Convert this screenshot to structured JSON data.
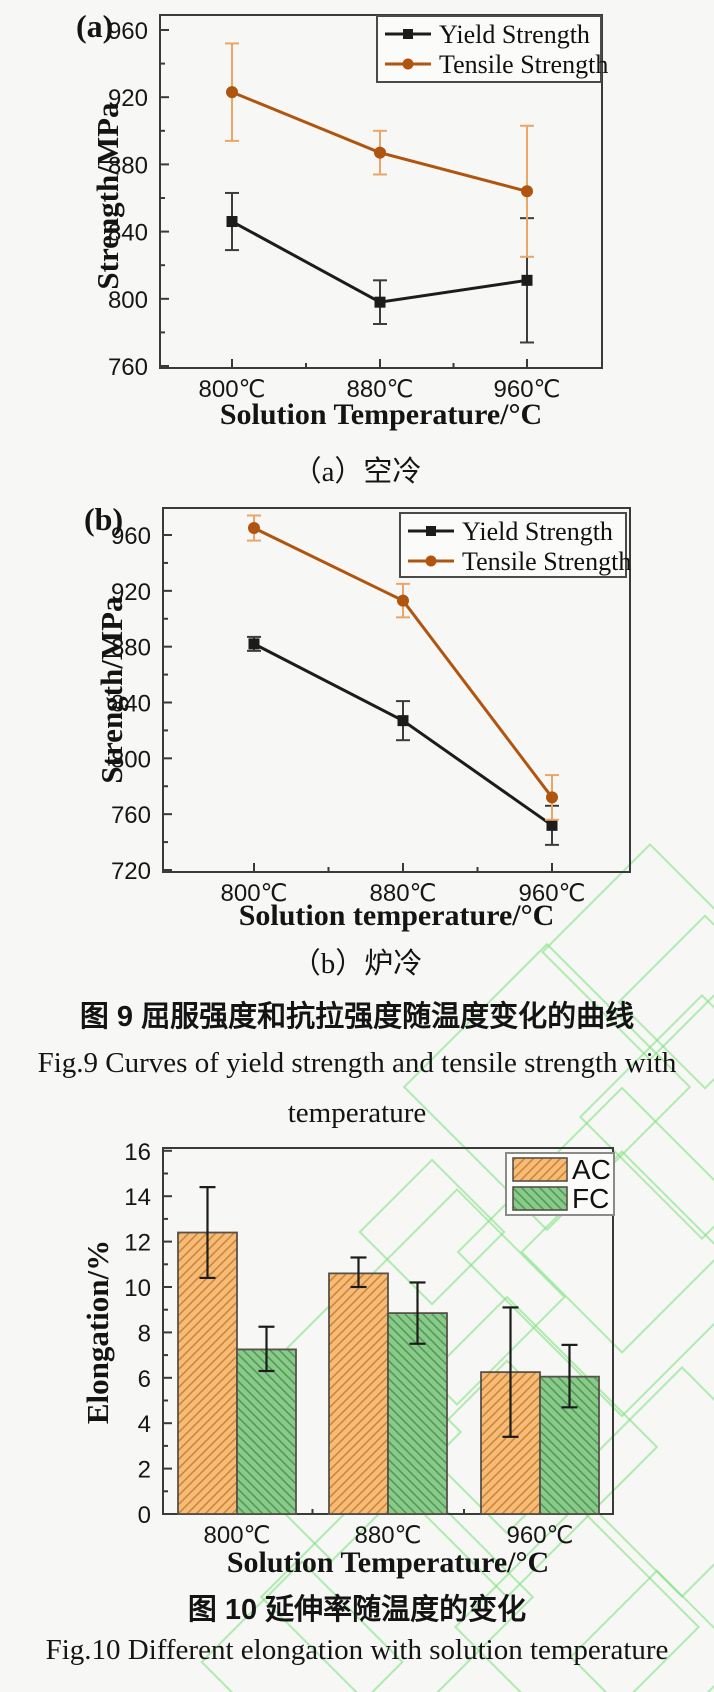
{
  "page": {
    "background": "#f7f7f5",
    "watermark_color": "#74e274"
  },
  "figure9": {
    "caption_zh": "图 9 屈服强度和抗拉强度随温度变化的曲线",
    "caption_en_line1": "Fig.9 Curves of yield strength and tensile strength with",
    "caption_en_line2": "temperature"
  },
  "figure10": {
    "caption_zh": "图 10 延伸率随温度的变化",
    "caption_en": "Fig.10 Different elongation with solution temperature"
  },
  "chart_data": [
    {
      "id": "fig9a",
      "type": "line",
      "panel_label": "(a)",
      "sub_caption": "（a）空冷",
      "xlabel": "Solution Temperature/°C",
      "ylabel": "Strength/MPa",
      "categories": [
        "800℃",
        "880℃",
        "960℃"
      ],
      "ylim": [
        760,
        969
      ],
      "yticks": [
        760,
        800,
        840,
        880,
        920,
        960
      ],
      "grid": false,
      "legend_position": "top-right",
      "series": [
        {
          "name": "Yield Strength",
          "marker": "square",
          "color": "#1c1c1c",
          "errbar_color": "#3c3c3c",
          "values": [
            846,
            798,
            811
          ],
          "err": [
            17,
            13,
            37
          ]
        },
        {
          "name": "Tensile Strength",
          "marker": "circle",
          "color": "#b05510",
          "errbar_color": "#e9a667",
          "values": [
            923,
            887,
            864
          ],
          "err": [
            29,
            13,
            39
          ]
        }
      ]
    },
    {
      "id": "fig9b",
      "type": "line",
      "panel_label": "(b)",
      "sub_caption": "（b）炉冷",
      "xlabel": "Solution temperature/°C",
      "ylabel": "Strength/MPa",
      "categories": [
        "800℃",
        "880℃",
        "960℃"
      ],
      "ylim": [
        720,
        979
      ],
      "yticks": [
        720,
        760,
        800,
        840,
        880,
        920,
        960
      ],
      "grid": false,
      "legend_position": "top-right",
      "series": [
        {
          "name": "Yield Strength",
          "marker": "square",
          "color": "#1c1c1c",
          "errbar_color": "#3c3c3c",
          "values": [
            882,
            827,
            752
          ],
          "err": [
            5,
            14,
            14
          ]
        },
        {
          "name": "Tensile Strength",
          "marker": "circle",
          "color": "#b05510",
          "errbar_color": "#e9a667",
          "values": [
            965,
            913,
            772
          ],
          "err": [
            9,
            12,
            16
          ]
        }
      ]
    },
    {
      "id": "fig10",
      "type": "bar",
      "xlabel": "Solution Temperature/°C",
      "ylabel": "Elongation/%",
      "categories": [
        "800℃",
        "880℃",
        "960℃"
      ],
      "ylim": [
        0,
        16
      ],
      "yticks": [
        0,
        2,
        4,
        6,
        8,
        10,
        12,
        14,
        16
      ],
      "grid": false,
      "legend_position": "top-right",
      "series": [
        {
          "name": "AC",
          "fill": "#f6bb79",
          "hatch": "#cd8733",
          "hatch_dir": "/",
          "values": [
            12.4,
            10.6,
            6.25
          ],
          "err_low": [
            2.0,
            0.6,
            2.85
          ],
          "err_high": [
            2.0,
            0.7,
            2.85
          ]
        },
        {
          "name": "FC",
          "fill": "#8bc88b",
          "hatch": "#4e9d50",
          "hatch_dir": "\\",
          "values": [
            7.25,
            8.85,
            6.05
          ],
          "err_low": [
            0.95,
            1.35,
            1.35
          ],
          "err_high": [
            1.0,
            1.35,
            1.4
          ]
        }
      ]
    }
  ]
}
